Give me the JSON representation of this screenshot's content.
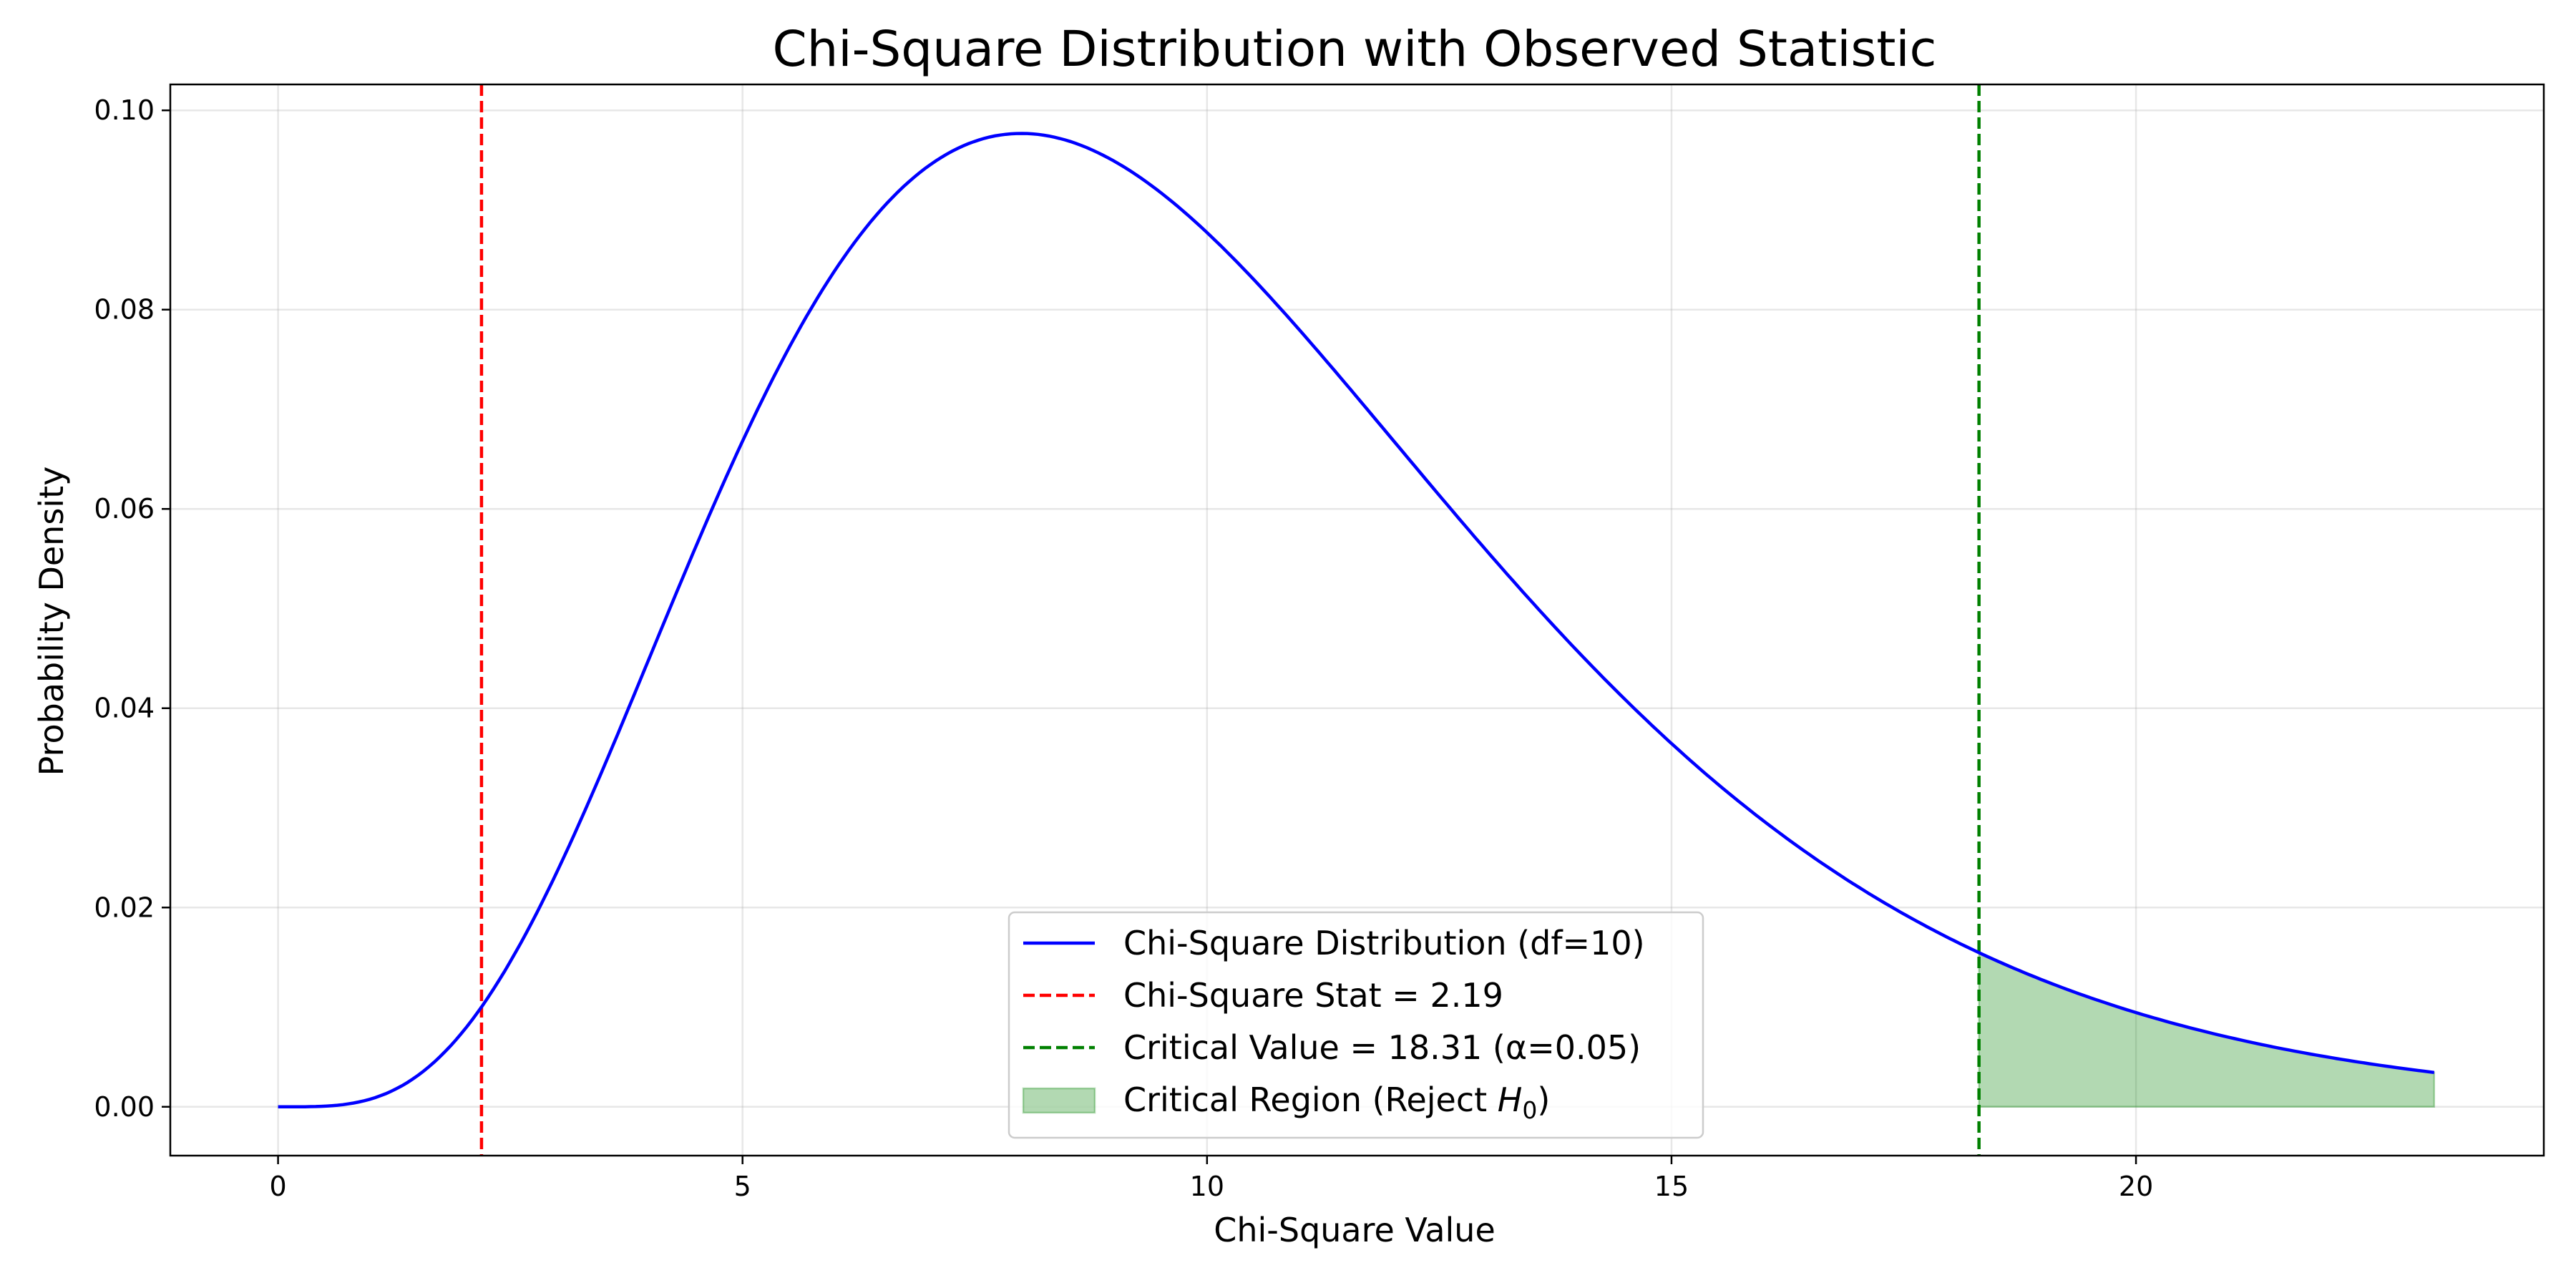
{
  "chart_data": {
    "type": "line",
    "title": "Chi-Square Distribution with Observed Statistic",
    "xlabel": "Chi-Square Value",
    "ylabel": "Probability Density",
    "xlim": [
      -1.16,
      24.39
    ],
    "ylim": [
      -0.0049,
      0.1026
    ],
    "xticks": [
      0,
      5,
      10,
      15,
      20
    ],
    "xtick_labels": [
      "0",
      "5",
      "10",
      "15",
      "20"
    ],
    "yticks": [
      0.0,
      0.02,
      0.04,
      0.06,
      0.08,
      0.1
    ],
    "ytick_labels": [
      "0.00",
      "0.02",
      "0.04",
      "0.06",
      "0.08",
      "0.10"
    ],
    "grid": true,
    "legend_position": "lower-center",
    "series": [
      {
        "name": "Chi-Square Distribution (df=10)",
        "kind": "line",
        "style": "solid",
        "color": "#0000ff",
        "df": 10,
        "x_range": [
          0,
          23.21
        ],
        "x": [
          0,
          1,
          2,
          3,
          4,
          5,
          6,
          7,
          8,
          9,
          10,
          11,
          12,
          13,
          14,
          15,
          16,
          17,
          18,
          19,
          20,
          21,
          22,
          23.21
        ],
        "y": [
          0,
          0.0008,
          0.0077,
          0.0251,
          0.0489,
          0.0705,
          0.0871,
          0.096,
          0.0977,
          0.094,
          0.0877,
          0.0794,
          0.0703,
          0.0613,
          0.0526,
          0.0446,
          0.0375,
          0.0311,
          0.0256,
          0.021,
          0.0171,
          0.0138,
          0.0111,
          0.0034
        ]
      },
      {
        "name": "Chi-Square Stat = 2.19",
        "kind": "vline",
        "style": "dashed",
        "color": "#ff0000",
        "x": 2.19
      },
      {
        "name": "Critical Value = 18.31 (α=0.05)",
        "kind": "vline",
        "style": "dashed",
        "color": "#008000",
        "x": 18.31
      },
      {
        "name": "Critical Region (Reject H0)",
        "legend_label_parts": [
          "Critical Region (Reject ",
          "H",
          "0",
          ")"
        ],
        "kind": "fill",
        "color": "#008000",
        "alpha": 0.3,
        "x_range": [
          18.31,
          23.21
        ]
      }
    ]
  }
}
